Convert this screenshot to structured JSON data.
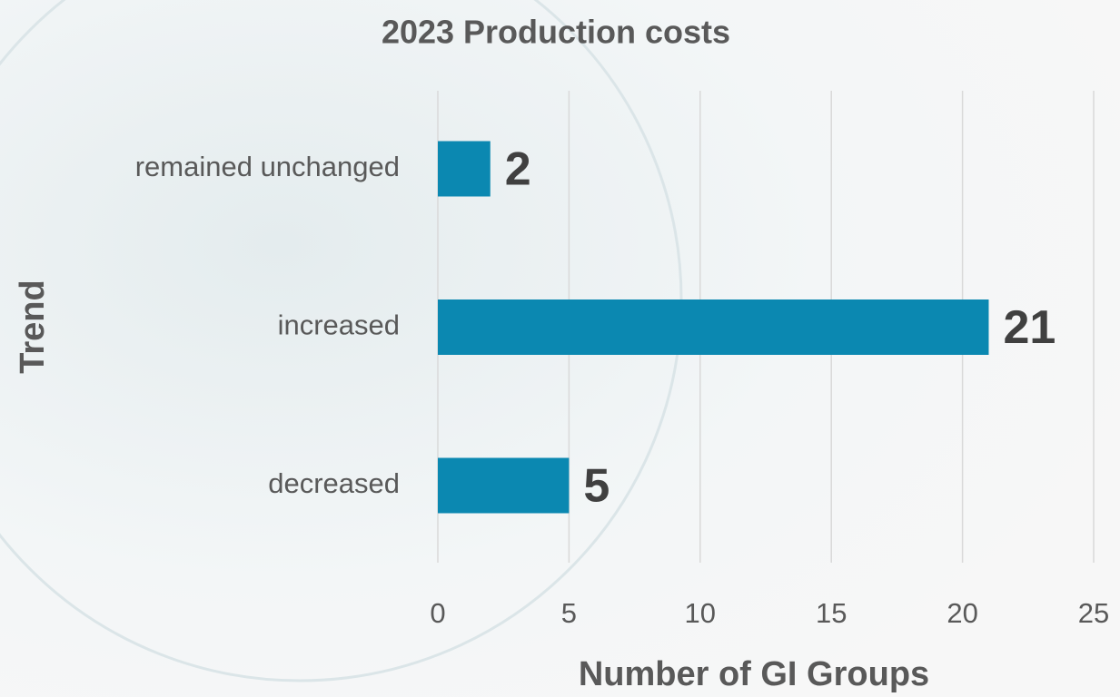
{
  "chart_data": {
    "type": "bar",
    "orientation": "horizontal",
    "title": "2023 Production costs",
    "x_label": "Number of GI Groups",
    "y_label": "Trend",
    "categories": [
      "remained unchanged",
      "increased",
      "decreased"
    ],
    "values": [
      2,
      21,
      5
    ],
    "color": "#0b88b1",
    "xlim": [
      0,
      25
    ],
    "xticks": [
      0,
      5,
      10,
      15,
      20,
      25
    ],
    "grid": true
  }
}
